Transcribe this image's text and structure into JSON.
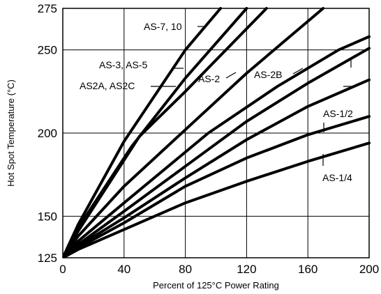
{
  "chart_data": {
    "type": "line",
    "title": "",
    "xlabel": "Percent of 125°C Power Rating",
    "ylabel": "Hot Spot Temperature (°C)",
    "xlim": [
      0,
      200
    ],
    "ylim": [
      125,
      275
    ],
    "xticks": [
      "0",
      "40",
      "80",
      "120",
      "160",
      "200"
    ],
    "yticks": [
      "125",
      "150",
      "200",
      "250",
      "275"
    ],
    "grid": true,
    "series": [
      {
        "name": "AS-7, 10",
        "x": [
          0,
          10,
          40,
          80,
          103
        ],
        "y": [
          125,
          145,
          195,
          250,
          275
        ]
      },
      {
        "name": "AS-3, AS-5",
        "x": [
          0,
          10,
          45,
          80,
          120
        ],
        "y": [
          125,
          143,
          192,
          233,
          275
        ]
      },
      {
        "name": "AS2A, AS2C",
        "x": [
          0,
          10,
          50,
          80,
          133
        ],
        "y": [
          125,
          141,
          198,
          225,
          275
        ]
      },
      {
        "name": "AS-2",
        "x": [
          0,
          10,
          40,
          80,
          120,
          170
        ],
        "y": [
          125,
          138,
          168,
          202,
          236,
          275
        ]
      },
      {
        "name": "AS-2B",
        "x": [
          0,
          10,
          40,
          95,
          140,
          180,
          200
        ],
        "y": [
          125,
          135,
          158,
          200,
          228,
          250,
          258
        ]
      },
      {
        "name": "",
        "x": [
          0,
          10,
          40,
          80,
          120,
          160,
          200
        ],
        "y": [
          125,
          133,
          153,
          180,
          207,
          230,
          251
        ]
      },
      {
        "name": "",
        "x": [
          0,
          10,
          40,
          80,
          120,
          160,
          200
        ],
        "y": [
          125,
          132,
          149,
          173,
          196,
          216,
          232
        ]
      },
      {
        "name": "AS-1/2",
        "x": [
          0,
          10,
          40,
          80,
          120,
          160,
          200
        ],
        "y": [
          125,
          131,
          146,
          168,
          185,
          199,
          210
        ]
      },
      {
        "name": "AS-1/4",
        "x": [
          0,
          10,
          40,
          80,
          120,
          160,
          200
        ],
        "y": [
          125,
          130,
          142,
          158,
          171,
          183,
          194
        ]
      }
    ],
    "annotations": [
      "AS-7, 10",
      "AS-3, AS-5",
      "AS2A, AS2C",
      "AS-2",
      "AS-2B",
      "AS-1/2",
      "AS-1/4"
    ]
  }
}
